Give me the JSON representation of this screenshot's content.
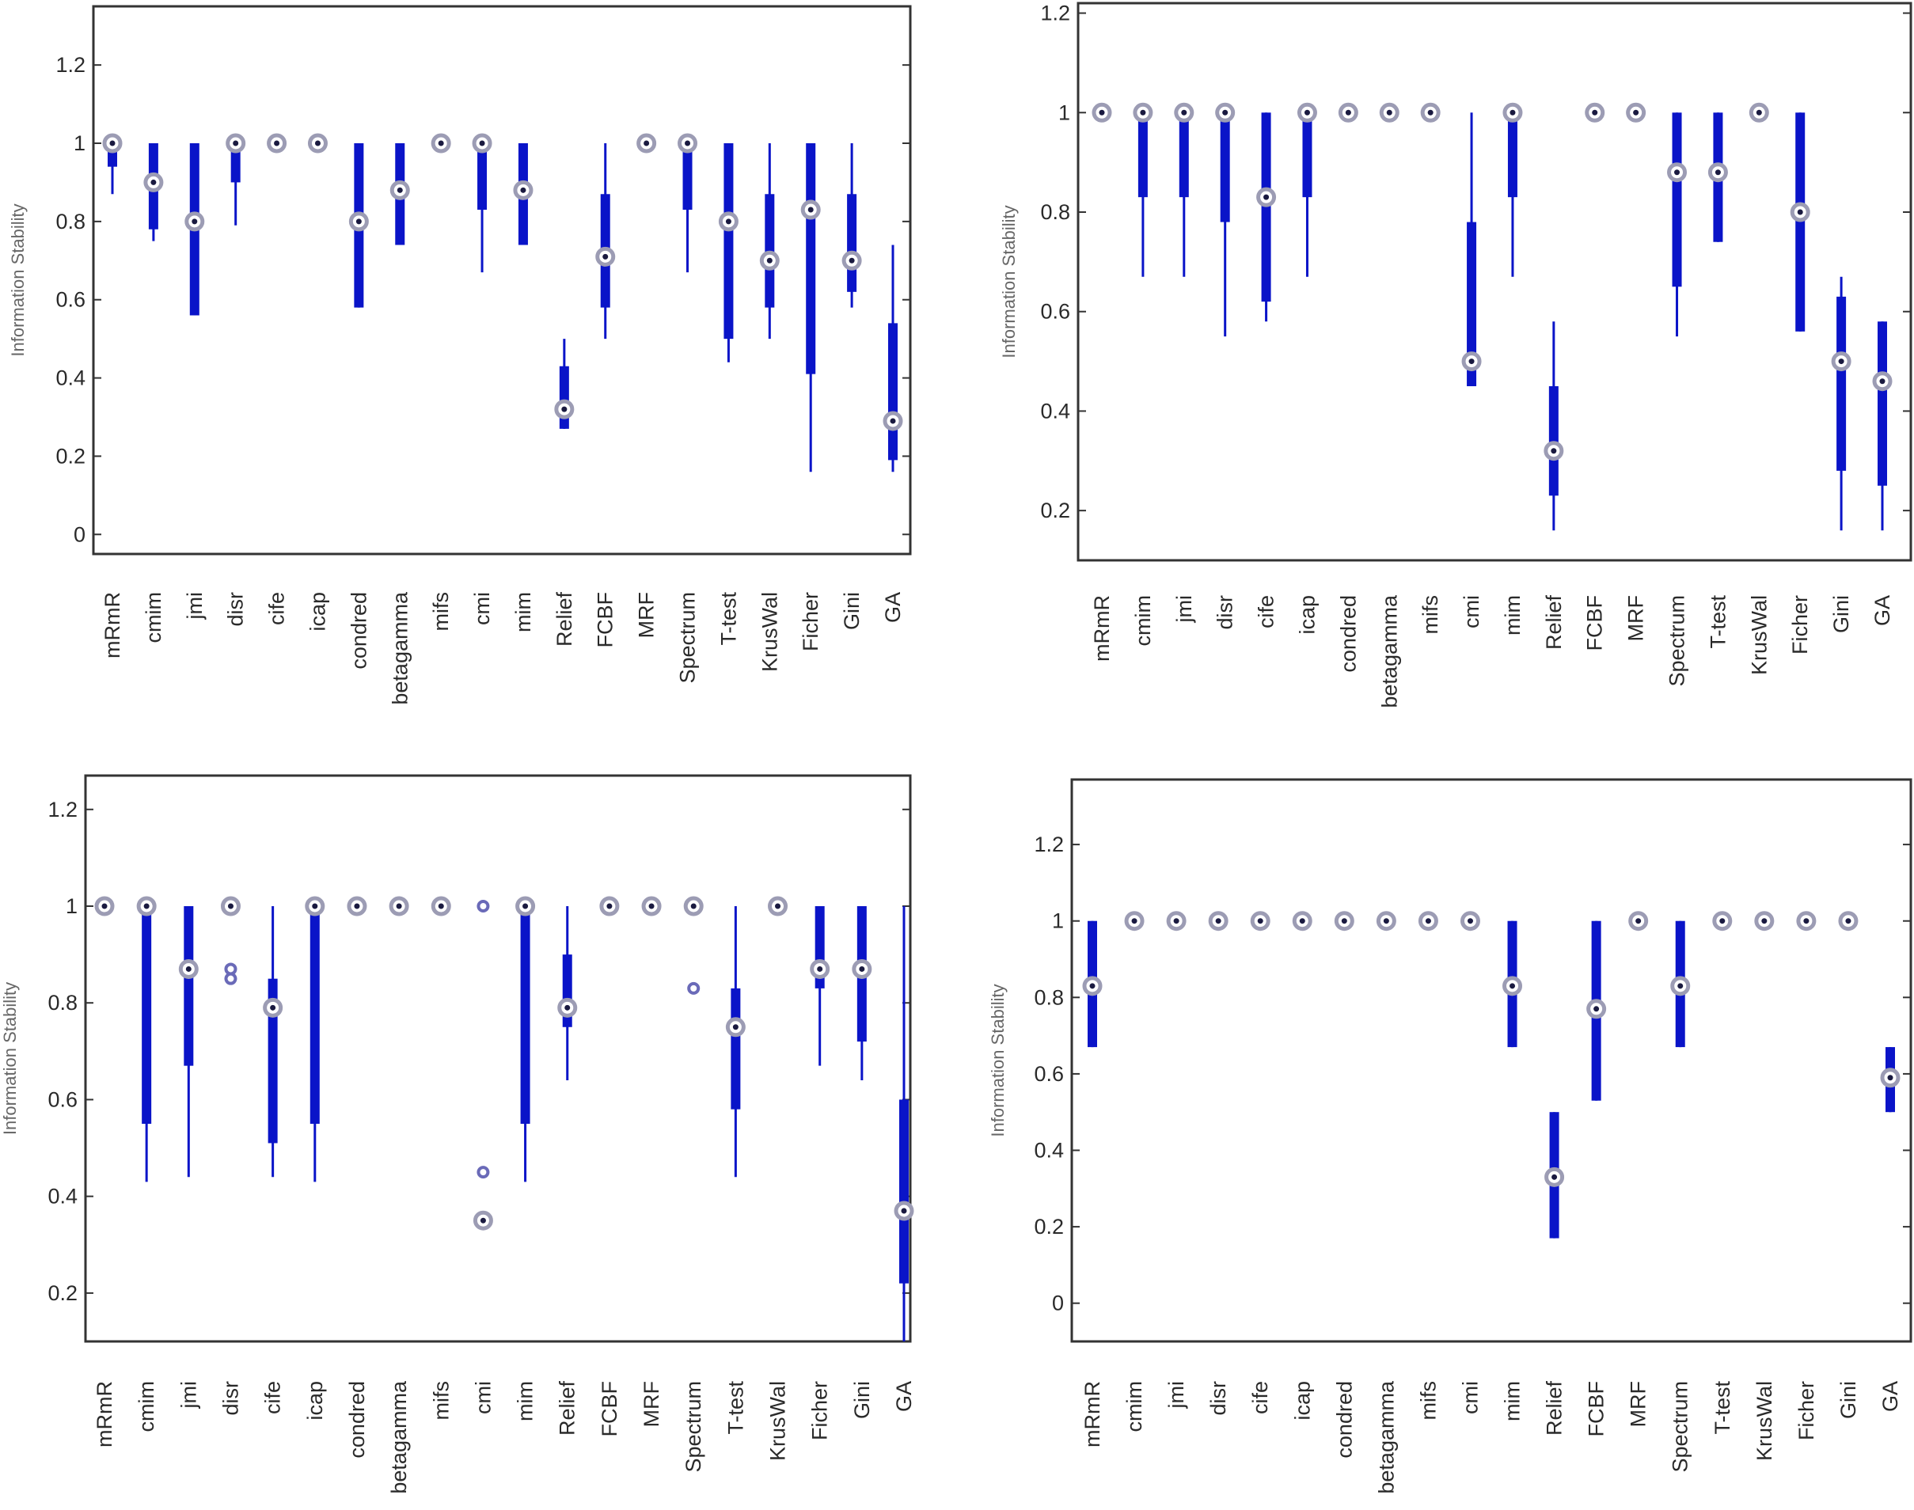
{
  "chart_data": [
    {
      "type": "box",
      "panel": "top-left",
      "ylabel": "Information Stability",
      "ylim": [
        -0.05,
        1.35
      ],
      "yticks": [
        0,
        0.2,
        0.4,
        0.6,
        0.8,
        1,
        1.2
      ],
      "ytick_labels": [
        "0",
        "0.2",
        "0.4",
        "0.6",
        "0.8",
        "1",
        "1.2"
      ],
      "categories": [
        "mRmR",
        "cmim",
        "jmi",
        "disr",
        "cife",
        "icap",
        "condred",
        "betagamma",
        "mifs",
        "cmi",
        "mim",
        "Relief",
        "FCBF",
        "MRF",
        "Spectrum",
        "T-test",
        "KrusWal",
        "Ficher",
        "Gini",
        "GA"
      ],
      "boxes": [
        {
          "median": 1.0,
          "q1": 0.94,
          "q3": 1.0,
          "wlo": 0.87,
          "whi": 1.0
        },
        {
          "median": 0.9,
          "q1": 0.78,
          "q3": 1.0,
          "wlo": 0.75,
          "whi": 1.0
        },
        {
          "median": 0.8,
          "q1": 0.56,
          "q3": 1.0,
          "wlo": 0.56,
          "whi": 1.0
        },
        {
          "median": 1.0,
          "q1": 0.9,
          "q3": 1.0,
          "wlo": 0.79,
          "whi": 1.0
        },
        {
          "median": 1.0,
          "q1": 1.0,
          "q3": 1.0,
          "wlo": 1.0,
          "whi": 1.0
        },
        {
          "median": 1.0,
          "q1": 1.0,
          "q3": 1.0,
          "wlo": 1.0,
          "whi": 1.0
        },
        {
          "median": 0.8,
          "q1": 0.58,
          "q3": 1.0,
          "wlo": 0.58,
          "whi": 1.0
        },
        {
          "median": 0.88,
          "q1": 0.74,
          "q3": 1.0,
          "wlo": 0.74,
          "whi": 1.0
        },
        {
          "median": 1.0,
          "q1": 1.0,
          "q3": 1.0,
          "wlo": 1.0,
          "whi": 1.0
        },
        {
          "median": 1.0,
          "q1": 0.83,
          "q3": 1.0,
          "wlo": 0.67,
          "whi": 1.0
        },
        {
          "median": 0.88,
          "q1": 0.74,
          "q3": 1.0,
          "wlo": 0.74,
          "whi": 1.0
        },
        {
          "median": 0.32,
          "q1": 0.27,
          "q3": 0.43,
          "wlo": 0.27,
          "whi": 0.5
        },
        {
          "median": 0.71,
          "q1": 0.58,
          "q3": 0.87,
          "wlo": 0.5,
          "whi": 1.0
        },
        {
          "median": 1.0,
          "q1": 1.0,
          "q3": 1.0,
          "wlo": 1.0,
          "whi": 1.0
        },
        {
          "median": 1.0,
          "q1": 0.83,
          "q3": 1.0,
          "wlo": 0.67,
          "whi": 1.0
        },
        {
          "median": 0.8,
          "q1": 0.5,
          "q3": 1.0,
          "wlo": 0.44,
          "whi": 1.0
        },
        {
          "median": 0.7,
          "q1": 0.58,
          "q3": 0.87,
          "wlo": 0.5,
          "whi": 1.0
        },
        {
          "median": 0.83,
          "q1": 0.41,
          "q3": 1.0,
          "wlo": 0.16,
          "whi": 1.0
        },
        {
          "median": 0.7,
          "q1": 0.62,
          "q3": 0.87,
          "wlo": 0.58,
          "whi": 1.0
        },
        {
          "median": 0.29,
          "q1": 0.19,
          "q3": 0.54,
          "wlo": 0.16,
          "whi": 0.74
        }
      ]
    },
    {
      "type": "box",
      "panel": "top-right",
      "ylabel": "Information Stability",
      "ylim": [
        0.1,
        1.22
      ],
      "yticks": [
        0.2,
        0.4,
        0.6,
        0.8,
        1,
        1.2
      ],
      "ytick_labels": [
        "0.2",
        "0.4",
        "0.6",
        "0.8",
        "1",
        "1.2"
      ],
      "categories": [
        "mRmR",
        "cmim",
        "jmi",
        "disr",
        "cife",
        "icap",
        "condred",
        "betagamma",
        "mifs",
        "cmi",
        "mim",
        "Relief",
        "FCBF",
        "MRF",
        "Spectrum",
        "T-test",
        "KrusWal",
        "Ficher",
        "Gini",
        "GA"
      ],
      "boxes": [
        {
          "median": 1.0,
          "q1": 1.0,
          "q3": 1.0,
          "wlo": 1.0,
          "whi": 1.0
        },
        {
          "median": 1.0,
          "q1": 0.83,
          "q3": 1.0,
          "wlo": 0.67,
          "whi": 1.0
        },
        {
          "median": 1.0,
          "q1": 0.83,
          "q3": 1.0,
          "wlo": 0.67,
          "whi": 1.0
        },
        {
          "median": 1.0,
          "q1": 0.78,
          "q3": 1.0,
          "wlo": 0.55,
          "whi": 1.0
        },
        {
          "median": 0.83,
          "q1": 0.62,
          "q3": 1.0,
          "wlo": 0.58,
          "whi": 1.0
        },
        {
          "median": 1.0,
          "q1": 0.83,
          "q3": 1.0,
          "wlo": 0.67,
          "whi": 1.0
        },
        {
          "median": 1.0,
          "q1": 1.0,
          "q3": 1.0,
          "wlo": 1.0,
          "whi": 1.0
        },
        {
          "median": 1.0,
          "q1": 1.0,
          "q3": 1.0,
          "wlo": 1.0,
          "whi": 1.0
        },
        {
          "median": 1.0,
          "q1": 1.0,
          "q3": 1.0,
          "wlo": 1.0,
          "whi": 1.0
        },
        {
          "median": 0.5,
          "q1": 0.45,
          "q3": 0.78,
          "wlo": 0.45,
          "whi": 1.0
        },
        {
          "median": 1.0,
          "q1": 0.83,
          "q3": 1.0,
          "wlo": 0.67,
          "whi": 1.0
        },
        {
          "median": 0.32,
          "q1": 0.23,
          "q3": 0.45,
          "wlo": 0.16,
          "whi": 0.58
        },
        {
          "median": 1.0,
          "q1": 1.0,
          "q3": 1.0,
          "wlo": 1.0,
          "whi": 1.0
        },
        {
          "median": 1.0,
          "q1": 1.0,
          "q3": 1.0,
          "wlo": 1.0,
          "whi": 1.0
        },
        {
          "median": 0.88,
          "q1": 0.65,
          "q3": 1.0,
          "wlo": 0.55,
          "whi": 1.0
        },
        {
          "median": 0.88,
          "q1": 0.74,
          "q3": 1.0,
          "wlo": 0.74,
          "whi": 1.0
        },
        {
          "median": 1.0,
          "q1": 1.0,
          "q3": 1.0,
          "wlo": 1.0,
          "whi": 1.0
        },
        {
          "median": 0.8,
          "q1": 0.56,
          "q3": 1.0,
          "wlo": 0.56,
          "whi": 1.0
        },
        {
          "median": 0.5,
          "q1": 0.28,
          "q3": 0.63,
          "wlo": 0.16,
          "whi": 0.67
        },
        {
          "median": 0.46,
          "q1": 0.25,
          "q3": 0.58,
          "wlo": 0.16,
          "whi": 0.58
        }
      ]
    },
    {
      "type": "box",
      "panel": "bottom-left",
      "ylabel": "Information Stability",
      "ylim": [
        0.1,
        1.27
      ],
      "yticks": [
        0.2,
        0.4,
        0.6,
        0.8,
        1,
        1.2
      ],
      "ytick_labels": [
        "0.2",
        "0.4",
        "0.6",
        "0.8",
        "1",
        "1.2"
      ],
      "categories": [
        "mRmR",
        "cmim",
        "jmi",
        "disr",
        "cife",
        "icap",
        "condred",
        "betagamma",
        "mifs",
        "cmi",
        "mim",
        "Relief",
        "FCBF",
        "MRF",
        "Spectrum",
        "T-test",
        "KrusWal",
        "Ficher",
        "Gini",
        "GA"
      ],
      "boxes": [
        {
          "median": 1.0,
          "q1": 1.0,
          "q3": 1.0,
          "wlo": 1.0,
          "whi": 1.0
        },
        {
          "median": 1.0,
          "q1": 0.55,
          "q3": 1.0,
          "wlo": 0.43,
          "whi": 1.0
        },
        {
          "median": 0.87,
          "q1": 0.67,
          "q3": 1.0,
          "wlo": 0.44,
          "whi": 1.0
        },
        {
          "median": 1.0,
          "q1": 1.0,
          "q3": 1.0,
          "wlo": 1.0,
          "whi": 1.0
        },
        {
          "median": 0.79,
          "q1": 0.51,
          "q3": 0.85,
          "wlo": 0.44,
          "whi": 1.0
        },
        {
          "median": 1.0,
          "q1": 0.55,
          "q3": 1.0,
          "wlo": 0.43,
          "whi": 1.0
        },
        {
          "median": 1.0,
          "q1": 1.0,
          "q3": 1.0,
          "wlo": 1.0,
          "whi": 1.0
        },
        {
          "median": 1.0,
          "q1": 1.0,
          "q3": 1.0,
          "wlo": 1.0,
          "whi": 1.0
        },
        {
          "median": 1.0,
          "q1": 1.0,
          "q3": 1.0,
          "wlo": 1.0,
          "whi": 1.0
        },
        {
          "median": 0.35,
          "q1": 0.35,
          "q3": 0.35,
          "wlo": 0.35,
          "whi": 0.35
        },
        {
          "median": 1.0,
          "q1": 0.55,
          "q3": 1.0,
          "wlo": 0.43,
          "whi": 1.0
        },
        {
          "median": 0.79,
          "q1": 0.75,
          "q3": 0.9,
          "wlo": 0.64,
          "whi": 1.0
        },
        {
          "median": 1.0,
          "q1": 1.0,
          "q3": 1.0,
          "wlo": 1.0,
          "whi": 1.0
        },
        {
          "median": 1.0,
          "q1": 1.0,
          "q3": 1.0,
          "wlo": 1.0,
          "whi": 1.0
        },
        {
          "median": 1.0,
          "q1": 1.0,
          "q3": 1.0,
          "wlo": 1.0,
          "whi": 1.0
        },
        {
          "median": 0.75,
          "q1": 0.58,
          "q3": 0.83,
          "wlo": 0.44,
          "whi": 1.0
        },
        {
          "median": 1.0,
          "q1": 1.0,
          "q3": 1.0,
          "wlo": 1.0,
          "whi": 1.0
        },
        {
          "median": 0.87,
          "q1": 0.83,
          "q3": 1.0,
          "wlo": 0.67,
          "whi": 1.0
        },
        {
          "median": 0.87,
          "q1": 0.72,
          "q3": 1.0,
          "wlo": 0.64,
          "whi": 1.0
        },
        {
          "median": 0.37,
          "q1": 0.22,
          "q3": 0.6,
          "wlo": 0.1,
          "whi": 1.0
        }
      ],
      "outliers": [
        {
          "category": "disr",
          "value": 0.87
        },
        {
          "category": "disr",
          "value": 0.85
        },
        {
          "category": "cmi",
          "value": 1.0
        },
        {
          "category": "cmi",
          "value": 0.45
        },
        {
          "category": "Spectrum",
          "value": 0.83
        }
      ]
    },
    {
      "type": "box",
      "panel": "bottom-right",
      "ylabel": "Information Stability",
      "ylim": [
        -0.1,
        1.37
      ],
      "yticks": [
        0,
        0.2,
        0.4,
        0.6,
        0.8,
        1,
        1.2
      ],
      "ytick_labels": [
        "0",
        "0.2",
        "0.4",
        "0.6",
        "0.8",
        "1",
        "1.2"
      ],
      "categories": [
        "mRmR",
        "cmim",
        "jmi",
        "disr",
        "cife",
        "icap",
        "condred",
        "betagamma",
        "mifs",
        "cmi",
        "mim",
        "Relief",
        "FCBF",
        "MRF",
        "Spectrum",
        "T-test",
        "KrusWal",
        "Ficher",
        "Gini",
        "GA"
      ],
      "boxes": [
        {
          "median": 0.83,
          "q1": 0.67,
          "q3": 1.0,
          "wlo": 0.67,
          "whi": 1.0
        },
        {
          "median": 1.0,
          "q1": 1.0,
          "q3": 1.0,
          "wlo": 1.0,
          "whi": 1.0
        },
        {
          "median": 1.0,
          "q1": 1.0,
          "q3": 1.0,
          "wlo": 1.0,
          "whi": 1.0
        },
        {
          "median": 1.0,
          "q1": 1.0,
          "q3": 1.0,
          "wlo": 1.0,
          "whi": 1.0
        },
        {
          "median": 1.0,
          "q1": 1.0,
          "q3": 1.0,
          "wlo": 1.0,
          "whi": 1.0
        },
        {
          "median": 1.0,
          "q1": 1.0,
          "q3": 1.0,
          "wlo": 1.0,
          "whi": 1.0
        },
        {
          "median": 1.0,
          "q1": 1.0,
          "q3": 1.0,
          "wlo": 1.0,
          "whi": 1.0
        },
        {
          "median": 1.0,
          "q1": 1.0,
          "q3": 1.0,
          "wlo": 1.0,
          "whi": 1.0
        },
        {
          "median": 1.0,
          "q1": 1.0,
          "q3": 1.0,
          "wlo": 1.0,
          "whi": 1.0
        },
        {
          "median": 1.0,
          "q1": 1.0,
          "q3": 1.0,
          "wlo": 1.0,
          "whi": 1.0
        },
        {
          "median": 0.83,
          "q1": 0.67,
          "q3": 1.0,
          "wlo": 0.67,
          "whi": 1.0
        },
        {
          "median": 0.33,
          "q1": 0.17,
          "q3": 0.5,
          "wlo": 0.17,
          "whi": 0.5
        },
        {
          "median": 0.77,
          "q1": 0.53,
          "q3": 1.0,
          "wlo": 0.53,
          "whi": 1.0
        },
        {
          "median": 1.0,
          "q1": 1.0,
          "q3": 1.0,
          "wlo": 1.0,
          "whi": 1.0
        },
        {
          "median": 0.83,
          "q1": 0.67,
          "q3": 1.0,
          "wlo": 0.67,
          "whi": 1.0
        },
        {
          "median": 1.0,
          "q1": 1.0,
          "q3": 1.0,
          "wlo": 1.0,
          "whi": 1.0
        },
        {
          "median": 1.0,
          "q1": 1.0,
          "q3": 1.0,
          "wlo": 1.0,
          "whi": 1.0
        },
        {
          "median": 1.0,
          "q1": 1.0,
          "q3": 1.0,
          "wlo": 1.0,
          "whi": 1.0
        },
        {
          "median": 1.0,
          "q1": 1.0,
          "q3": 1.0,
          "wlo": 1.0,
          "whi": 1.0
        },
        {
          "median": 0.59,
          "q1": 0.5,
          "q3": 0.67,
          "wlo": 0.5,
          "whi": 0.67
        }
      ]
    }
  ],
  "colors": {
    "box": "#0a14c8",
    "median_ring": "#9c9cb4",
    "median_dot": "#1a1a40",
    "outlier": "#6a6ab8",
    "axes": "#333333",
    "tick_text": "#2a2a2a",
    "title_text": "#666666"
  }
}
